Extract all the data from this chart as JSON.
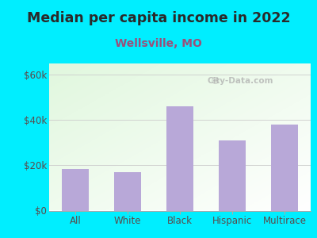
{
  "title": "Median per capita income in 2022",
  "subtitle": "Wellsville, MO",
  "categories": [
    "All",
    "White",
    "Black",
    "Hispanic",
    "Multirace"
  ],
  "values": [
    18500,
    17000,
    46000,
    31000,
    38000
  ],
  "bar_color": "#b8a8d8",
  "title_fontsize": 12.5,
  "subtitle_fontsize": 10,
  "subtitle_color": "#9b4f7a",
  "title_color": "#2a2a2a",
  "background_color": "#00eeff",
  "tick_color": "#5a4a4a",
  "ylabel_ticks": [
    0,
    20000,
    40000,
    60000
  ],
  "ylabel_labels": [
    "$0",
    "$20k",
    "$40k",
    "$60k"
  ],
  "ylim": [
    0,
    65000
  ],
  "watermark": "City-Data.com",
  "grid_color": "#cccccc"
}
